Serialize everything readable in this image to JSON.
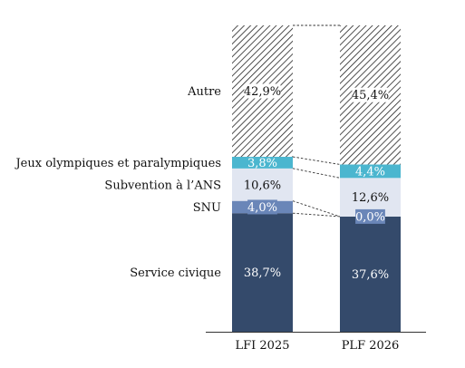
{
  "chart_data": {
    "type": "bar",
    "stacked": true,
    "categories": [
      "LFI 2025",
      "PLF 2026"
    ],
    "series": [
      {
        "name": "Service civique",
        "values": [
          38.7,
          37.6
        ],
        "labels": [
          "38,7%",
          "37,6%"
        ],
        "color": "#344a6b",
        "label_color": "#ffffff",
        "label_bg": "none"
      },
      {
        "name": "SNU",
        "values": [
          4.0,
          0.0
        ],
        "labels": [
          "4,0%",
          "0,0%"
        ],
        "color": "#6a86b8",
        "label_color": "#ffffff",
        "label_bg": "#6a86b8"
      },
      {
        "name": "Subvention à l’ANS",
        "values": [
          10.6,
          12.6
        ],
        "labels": [
          "10,6%",
          "12,6%"
        ],
        "color": "#e1e6f1",
        "label_color": "#111111",
        "label_bg": "none"
      },
      {
        "name": "Jeux olympiques et paralympiques",
        "values": [
          3.8,
          4.4
        ],
        "labels": [
          "3,8%",
          "4,4%"
        ],
        "color": "#4bb6cf",
        "label_color": "#ffffff",
        "label_bg": "none"
      },
      {
        "name": "Autre",
        "values": [
          42.9,
          45.4
        ],
        "labels": [
          "42,9%",
          "45,4%"
        ],
        "color": "hatch",
        "label_color": "#111111",
        "label_bg": "#ffffff"
      }
    ],
    "ylim": [
      0,
      100
    ],
    "grid": false,
    "legend": "left, series labels aligned with bar segments",
    "connector_lines": "dashed between segment boundaries"
  }
}
